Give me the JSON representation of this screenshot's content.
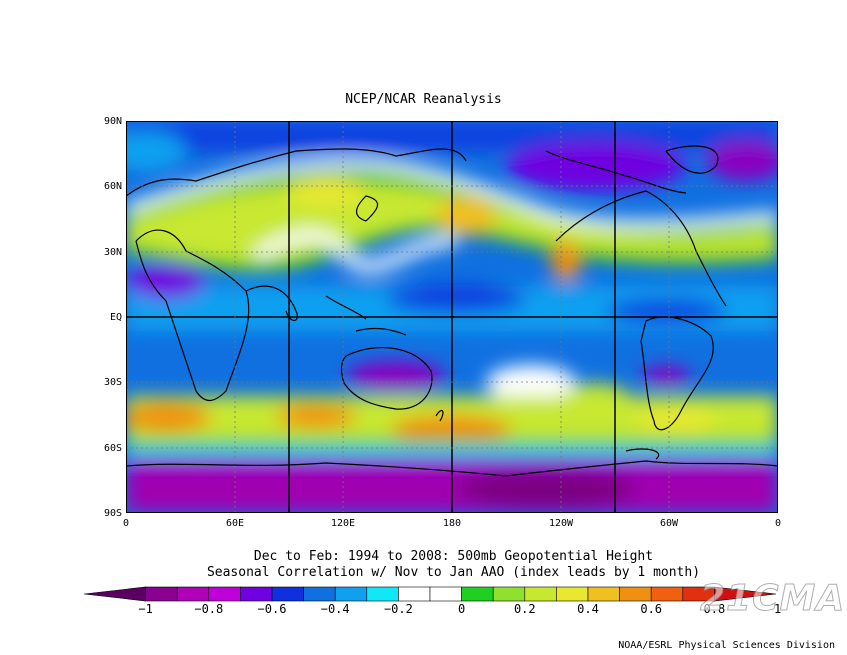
{
  "title": "NCEP/NCAR Reanalysis",
  "lat_labels": [
    "90N",
    "60N",
    "30N",
    "EQ",
    "30S",
    "60S",
    "90S"
  ],
  "lon_labels": [
    "0",
    "60E",
    "120E",
    "180",
    "120W",
    "60W",
    "0"
  ],
  "caption": {
    "line1": "Dec to Feb: 1994 to 2008: 500mb Geopotential Height",
    "line2": "Seasonal Correlation w/ Nov to Jan AAO (index leads by 1 month)"
  },
  "colorbar": {
    "labels": [
      "−1",
      "−0.8",
      "−0.6",
      "−0.4",
      "−0.2",
      "0",
      "0.2",
      "0.4",
      "0.6",
      "0.8",
      "1"
    ],
    "colors": [
      "#5a0060",
      "#8a0090",
      "#b000b8",
      "#c000d8",
      "#7000e0",
      "#1030e0",
      "#1070e0",
      "#10a0f0",
      "#10e8f8",
      "#ffffff",
      "#ffffff",
      "#20d020",
      "#90e030",
      "#c8e830",
      "#e8e830",
      "#f0c020",
      "#f09010",
      "#f06010",
      "#e03010",
      "#d01010"
    ]
  },
  "credit": "NOAA/ESRL Physical Sciences Division",
  "watermark": "21CMA"
}
